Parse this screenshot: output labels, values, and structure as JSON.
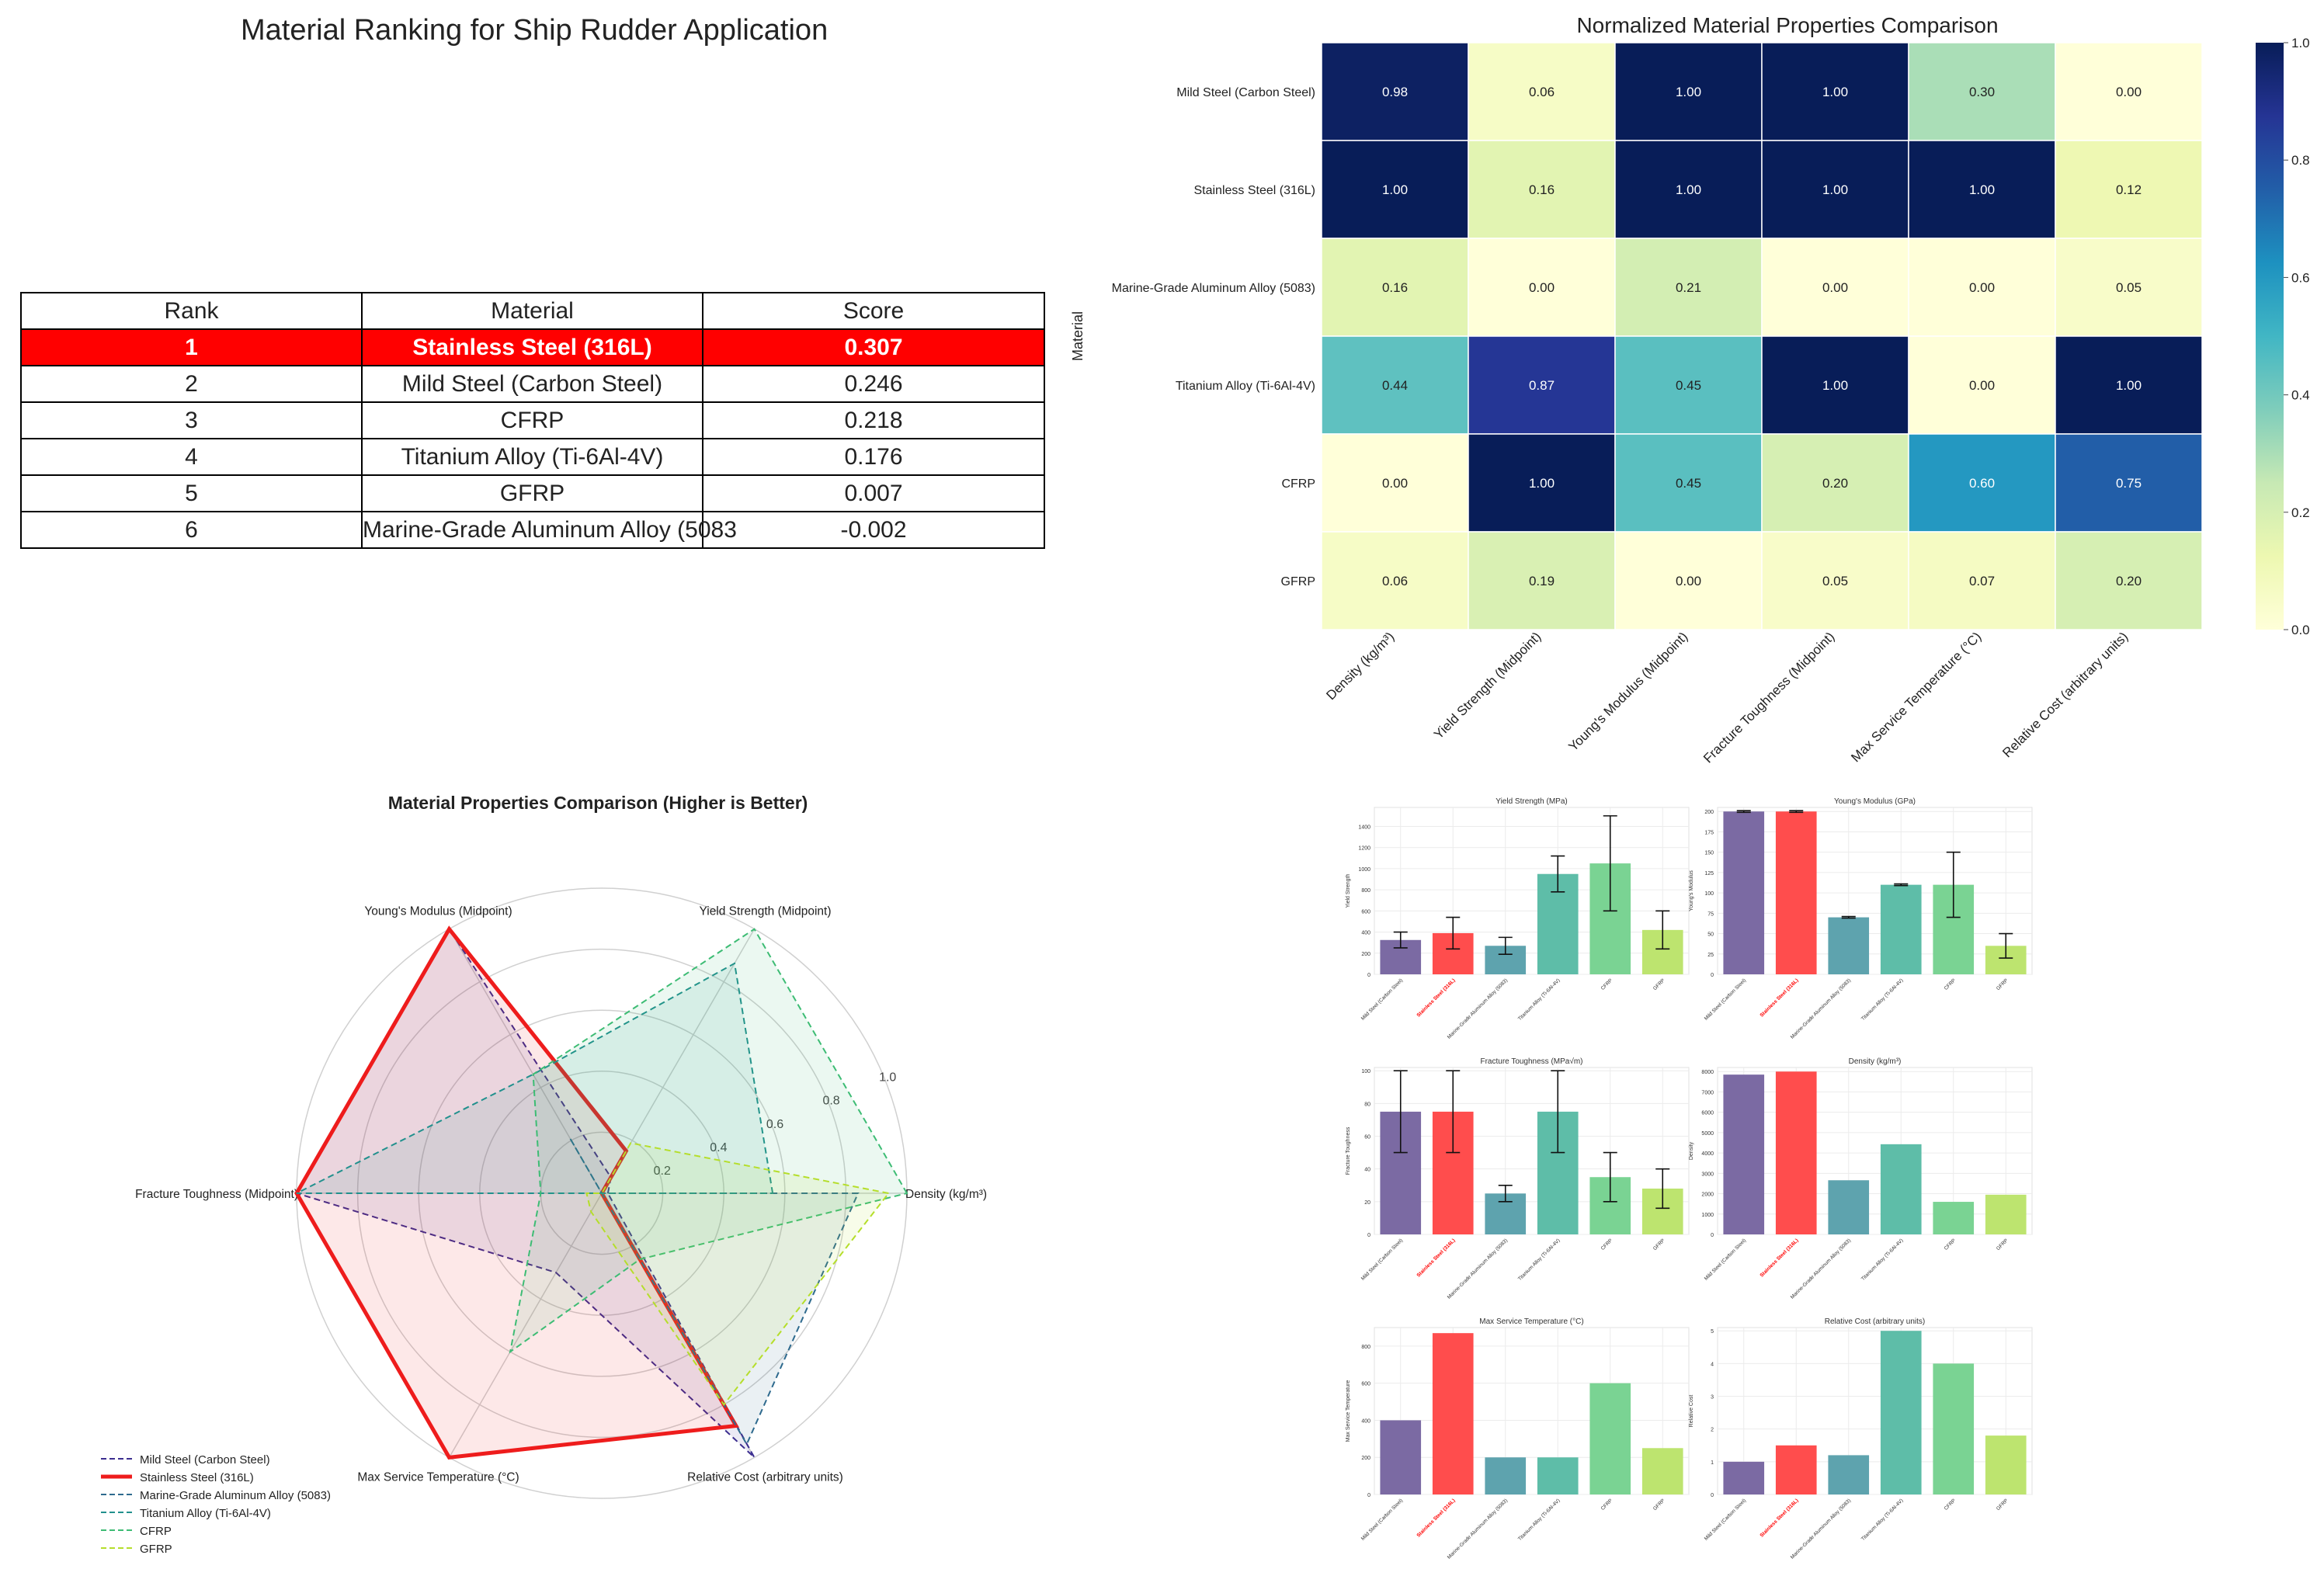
{
  "ranking": {
    "title": "Material Ranking for Ship Rudder Application",
    "headers": [
      "Rank",
      "Material",
      "Score"
    ],
    "rows": [
      {
        "rank": "1",
        "material": "Stainless Steel (316L)",
        "score": "0.307"
      },
      {
        "rank": "2",
        "material": "Mild Steel (Carbon Steel)",
        "score": "0.246"
      },
      {
        "rank": "3",
        "material": "CFRP",
        "score": "0.218"
      },
      {
        "rank": "4",
        "material": "Titanium Alloy (Ti-6Al-4V)",
        "score": "0.176"
      },
      {
        "rank": "5",
        "material": "GFRP",
        "score": "0.007"
      },
      {
        "rank": "6",
        "material": "Marine-Grade Aluminum Alloy (5083",
        "score": "-0.002"
      }
    ],
    "highlight_color": "#ff0000"
  },
  "chart_data": [
    {
      "type": "heatmap",
      "title": "Normalized Material Properties Comparison",
      "ylabel": "Material",
      "rows": [
        "Mild Steel (Carbon Steel)",
        "Stainless Steel (316L)",
        "Marine-Grade Aluminum Alloy (5083)",
        "Titanium Alloy (Ti-6Al-4V)",
        "CFRP",
        "GFRP"
      ],
      "columns": [
        "Density (kg/m³)",
        "Yield Strength (Midpoint)",
        "Young's Modulus (Midpoint)",
        "Fracture Toughness (Midpoint)",
        "Max Service Temperature (°C)",
        "Relative Cost (arbitrary units)"
      ],
      "values": [
        [
          0.98,
          0.06,
          1.0,
          1.0,
          0.3,
          0.0
        ],
        [
          1.0,
          0.16,
          1.0,
          1.0,
          1.0,
          0.12
        ],
        [
          0.16,
          0.0,
          0.21,
          0.0,
          0.0,
          0.05
        ],
        [
          0.44,
          0.87,
          0.45,
          1.0,
          0.0,
          1.0
        ],
        [
          0.0,
          1.0,
          0.45,
          0.2,
          0.6,
          0.75
        ],
        [
          0.06,
          0.19,
          0.0,
          0.05,
          0.07,
          0.2
        ]
      ],
      "colormap": "YlGnBu",
      "colorbar_ticks": [
        "0.0",
        "0.2",
        "0.4",
        "0.6",
        "0.8",
        "1.0"
      ],
      "vmin": 0,
      "vmax": 1
    },
    {
      "type": "radar",
      "title": "Material Properties Comparison (Higher is Better)",
      "axes": [
        "Density (kg/m³)",
        "Yield Strength (Midpoint)",
        "Young's Modulus (Midpoint)",
        "Fracture Toughness (Midpoint)",
        "Max Service Temperature (°C)",
        "Relative Cost (arbitrary units)"
      ],
      "radial_ticks": [
        "0.2",
        "0.4",
        "0.6",
        "0.8",
        "1.0"
      ],
      "series": [
        {
          "name": "Mild Steel (Carbon Steel)",
          "color": "#3b2d8f",
          "dash": true,
          "values": [
            0.02,
            0.06,
            1.0,
            1.0,
            0.3,
            1.0
          ]
        },
        {
          "name": "Stainless Steel (316L)",
          "color": "#ee1c1c",
          "dash": false,
          "values": [
            0.0,
            0.16,
            1.0,
            1.0,
            1.0,
            0.88
          ]
        },
        {
          "name": "Marine-Grade Aluminum Alloy (5083)",
          "color": "#2e6a8e",
          "dash": true,
          "values": [
            0.84,
            0.0,
            0.21,
            0.0,
            0.0,
            0.95
          ]
        },
        {
          "name": "Titanium Alloy (Ti-6Al-4V)",
          "color": "#21908d",
          "dash": true,
          "values": [
            0.56,
            0.87,
            0.45,
            1.0,
            0.0,
            0.0
          ]
        },
        {
          "name": "CFRP",
          "color": "#3dbc74",
          "dash": true,
          "values": [
            1.0,
            1.0,
            0.45,
            0.2,
            0.6,
            0.25
          ]
        },
        {
          "name": "GFRP",
          "color": "#b5de2b",
          "dash": true,
          "values": [
            0.94,
            0.19,
            0.0,
            0.05,
            0.07,
            0.8
          ]
        }
      ]
    },
    {
      "type": "bar",
      "title": "Yield Strength (MPa)",
      "ylabel": "Yield Strength",
      "categories": [
        "Mild Steel (Carbon Steel)",
        "Stainless Steel (316L)",
        "Marine-Grade Aluminum Alloy (5083)",
        "Titanium Alloy (Ti-6Al-4V)",
        "CFRP",
        "GFRP"
      ],
      "values": [
        325,
        390,
        270,
        950,
        1050,
        420
      ],
      "errors": [
        75,
        150,
        80,
        170,
        450,
        180
      ],
      "ylim": [
        0,
        1580
      ],
      "yticks": [
        0,
        200,
        400,
        600,
        800,
        1000,
        1200,
        1400
      ]
    },
    {
      "type": "bar",
      "title": "Young's Modulus (GPa)",
      "ylabel": "Young's Modulus",
      "categories": [
        "Mild Steel (Carbon Steel)",
        "Stainless Steel (316L)",
        "Marine-Grade Aluminum Alloy (5083)",
        "Titanium Alloy (Ti-6Al-4V)",
        "CFRP",
        "GFRP"
      ],
      "values": [
        200,
        200,
        70,
        110,
        110,
        35
      ],
      "errors": [
        1,
        1,
        1,
        1,
        40,
        15
      ],
      "ylim": [
        0,
        205
      ],
      "yticks": [
        0,
        25,
        50,
        75,
        100,
        125,
        150,
        175,
        200
      ]
    },
    {
      "type": "bar",
      "title": "Fracture Toughness (MPa√m)",
      "ylabel": "Fracture Toughness",
      "categories": [
        "Mild Steel (Carbon Steel)",
        "Stainless Steel (316L)",
        "Marine-Grade Aluminum Alloy (5083)",
        "Titanium Alloy (Ti-6Al-4V)",
        "CFRP",
        "GFRP"
      ],
      "values": [
        75,
        75,
        25,
        75,
        35,
        28
      ],
      "errors": [
        25,
        25,
        5,
        25,
        15,
        12
      ],
      "ylim": [
        0,
        102
      ],
      "yticks": [
        0,
        20,
        40,
        60,
        80,
        100
      ]
    },
    {
      "type": "bar",
      "title": "Density (kg/m³)",
      "ylabel": "Density",
      "categories": [
        "Mild Steel (Carbon Steel)",
        "Stainless Steel (316L)",
        "Marine-Grade Aluminum Alloy (5083)",
        "Titanium Alloy (Ti-6Al-4V)",
        "CFRP",
        "GFRP"
      ],
      "values": [
        7850,
        8000,
        2660,
        4430,
        1600,
        1950
      ],
      "ylim": [
        0,
        8200
      ],
      "yticks": [
        0,
        1000,
        2000,
        3000,
        4000,
        5000,
        6000,
        7000,
        8000
      ]
    },
    {
      "type": "bar",
      "title": "Max Service Temperature (°C)",
      "ylabel": "Max Service Temperature",
      "categories": [
        "Mild Steel (Carbon Steel)",
        "Stainless Steel (316L)",
        "Marine-Grade Aluminum Alloy (5083)",
        "Titanium Alloy (Ti-6Al-4V)",
        "CFRP",
        "GFRP"
      ],
      "values": [
        400,
        870,
        200,
        200,
        600,
        250
      ],
      "ylim": [
        0,
        900
      ],
      "yticks": [
        0,
        200,
        400,
        600,
        800
      ]
    },
    {
      "type": "bar",
      "title": "Relative Cost (arbitrary units)",
      "ylabel": "Relative Cost",
      "categories": [
        "Mild Steel (Carbon Steel)",
        "Stainless Steel (316L)",
        "Marine-Grade Aluminum Alloy (5083)",
        "Titanium Alloy (Ti-6Al-4V)",
        "CFRP",
        "GFRP"
      ],
      "values": [
        1,
        1.5,
        1.2,
        5,
        4,
        1.8
      ],
      "ylim": [
        0,
        5.1
      ],
      "yticks": [
        0,
        1,
        2,
        3,
        4,
        5
      ]
    }
  ],
  "bar_colors": [
    "#7b6aa3",
    "#ff4d4d",
    "#5ea3ae",
    "#5ebda8",
    "#7ad393",
    "#bde46f"
  ],
  "highlight_label_color": "#ff0000"
}
